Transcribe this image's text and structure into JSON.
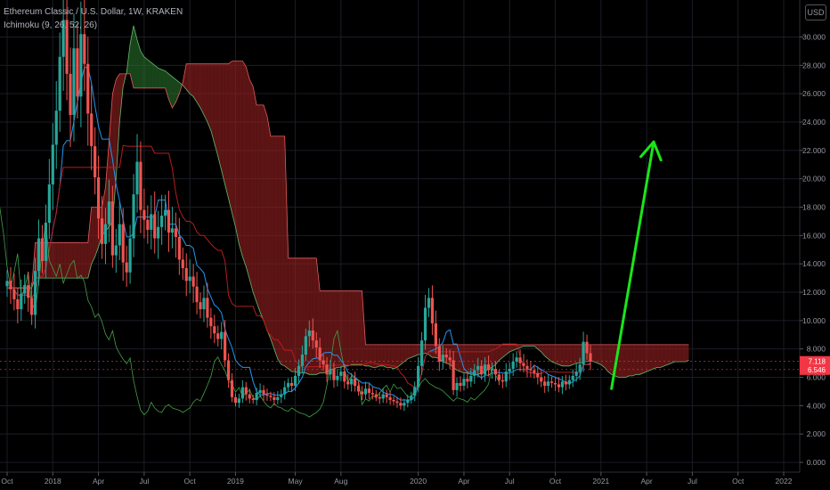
{
  "legend": {
    "symbol": "Ethereum Classic / U.S. Dollar, 1W, KRAKEN",
    "indicator": "Ichimoku (9, 26, 52, 26)"
  },
  "currency_button": "USD",
  "chart_data": {
    "type": "candlestick",
    "ylim": [
      0,
      31.5
    ],
    "y_ticks": [
      "0.000",
      "2.000",
      "4.000",
      "6.000",
      "8.000",
      "10.000",
      "12.000",
      "14.000",
      "16.000",
      "18.000",
      "20.000",
      "22.000",
      "24.000",
      "26.000",
      "28.000",
      "30.000"
    ],
    "x_labels": [
      {
        "label": "Oct",
        "week": 0
      },
      {
        "label": "2018",
        "week": 13
      },
      {
        "label": "Apr",
        "week": 26
      },
      {
        "label": "Jul",
        "week": 39
      },
      {
        "label": "Oct",
        "week": 52
      },
      {
        "label": "2019",
        "week": 65
      },
      {
        "label": "May",
        "week": 82
      },
      {
        "label": "Aug",
        "week": 95
      },
      {
        "label": "2020",
        "week": 117
      },
      {
        "label": "Apr",
        "week": 130
      },
      {
        "label": "Jul",
        "week": 143
      },
      {
        "label": "Oct",
        "week": 156
      },
      {
        "label": "2021",
        "week": 169
      },
      {
        "label": "Apr",
        "week": 182
      },
      {
        "label": "Jul",
        "week": 195
      },
      {
        "label": "Oct",
        "week": 208
      },
      {
        "label": "2022",
        "week": 221
      }
    ],
    "weeks_total": 230,
    "current_price": {
      "label": "7.118",
      "value": 7.118,
      "color": "#f23645"
    },
    "kijun_badge": {
      "label": "6.546",
      "value": 6.546,
      "color": "#f23645"
    },
    "close": [
      12.8,
      12.2,
      11.5,
      10.8,
      11.9,
      12.5,
      11.6,
      10.4,
      13.5,
      15.8,
      14.2,
      16.9,
      19.6,
      22.4,
      24.8,
      28.6,
      31.2,
      27.4,
      24.5,
      29.2,
      25.8,
      30.2,
      28.1,
      24.6,
      22.3,
      20.1,
      17.2,
      15.4,
      16.8,
      18.4,
      14.6,
      15.3,
      16.8,
      14.1,
      13.4,
      15.8,
      18.9,
      21.2,
      17.8,
      17.1,
      16.4,
      17.5,
      15.8,
      16.6,
      17.4,
      17.8,
      16.2,
      16.5,
      15.9,
      14.3,
      13.7,
      12.8,
      13.1,
      12.4,
      11.3,
      10.8,
      11.6,
      10.2,
      9.6,
      9.1,
      8.7,
      9.2,
      7.2,
      5.8,
      4.6,
      4.2,
      4.5,
      5.3,
      4.8,
      4.5,
      4.4,
      4.9,
      5.1,
      4.8,
      4.7,
      4.6,
      4.4,
      4.6,
      4.8,
      5.3,
      5.6,
      5.4,
      6.1,
      6.8,
      7.6,
      8.9,
      9.3,
      8.6,
      8.1,
      7.2,
      6.9,
      6.2,
      6.6,
      5.8,
      6.1,
      6.4,
      5.7,
      5.5,
      5.9,
      5.4,
      5.0,
      4.8,
      5.2,
      4.9,
      4.8,
      4.6,
      4.5,
      4.8,
      4.6,
      4.4,
      4.3,
      4.2,
      4.0,
      4.2,
      4.4,
      4.7,
      5.3,
      6.8,
      8.6,
      10.9,
      11.6,
      9.8,
      8.2,
      7.1,
      7.6,
      7.4,
      7.2,
      5.1,
      5.6,
      5.4,
      5.9,
      5.7,
      6.1,
      6.5,
      6.8,
      6.2,
      6.9,
      6.5,
      6.6,
      6.2,
      5.8,
      5.7,
      6.4,
      6.6,
      7.1,
      7.4,
      7.0,
      6.8,
      6.6,
      6.5,
      6.3,
      6.0,
      5.7,
      5.4,
      5.7,
      5.6,
      5.5,
      5.3,
      5.7,
      5.5,
      5.8,
      6.1,
      6.4,
      6.9,
      8.5,
      7.7,
      7.1
    ],
    "ichimoku": {
      "span_a": [
        12.3,
        12.3,
        12.3,
        12.3,
        12.3,
        12.3,
        12.3,
        12.3,
        13.0,
        13.0,
        13.0,
        13.0,
        13.0,
        13.0,
        13.0,
        13.0,
        13.0,
        13.0,
        13.0,
        13.0,
        13.0,
        13.0,
        13.0,
        13.0,
        14.0,
        14.5,
        15.2,
        16.0,
        16.3,
        16.6,
        17.0,
        20.0,
        24.0,
        26.5,
        27.5,
        29.5,
        30.8,
        29.8,
        29.0,
        28.6,
        28.4,
        28.2,
        28.0,
        27.8,
        27.7,
        27.6,
        27.4,
        27.2,
        27.0,
        26.8,
        26.6,
        26.3,
        26.0,
        25.8,
        25.4,
        25.0,
        24.5,
        24.0,
        23.4,
        22.5,
        21.6,
        20.6,
        19.6,
        18.6,
        17.6,
        16.6,
        15.4,
        14.5,
        13.8,
        12.9,
        12.0,
        11.3,
        10.6,
        10.0,
        9.3,
        8.7,
        8.0,
        7.3,
        6.9,
        6.8,
        6.6,
        6.4,
        6.4,
        6.3,
        6.3,
        6.3,
        6.2,
        6.2,
        6.2,
        6.3,
        6.3,
        6.4,
        6.5,
        6.6,
        6.7,
        6.7,
        6.8,
        6.8,
        6.9,
        6.9,
        6.9,
        6.9,
        6.8,
        6.8,
        6.7,
        6.7,
        6.8,
        6.8,
        6.7,
        6.7,
        6.6,
        6.7,
        6.9,
        7.1,
        7.3,
        7.4,
        7.5,
        7.6,
        7.6,
        7.7,
        7.6,
        7.4,
        7.4,
        7.3,
        7.1,
        7.0,
        6.9,
        6.7,
        6.5,
        6.4,
        6.3,
        6.3,
        6.2,
        6.2,
        6.2,
        6.3,
        6.4,
        6.6,
        6.7,
        6.9,
        7.2,
        7.4,
        7.6,
        7.8,
        7.9,
        8.0,
        8.1,
        8.2,
        8.2,
        8.2,
        8.2,
        8.0,
        7.8,
        7.5,
        7.3,
        7.1,
        7.0,
        6.9,
        6.8,
        6.8,
        6.8,
        6.9,
        7.0,
        7.0,
        7.1,
        7.1,
        7.2,
        7.1,
        7.0,
        6.9,
        6.7,
        6.4,
        6.2,
        6.1,
        6.0,
        6.0,
        6.0,
        6.1,
        6.1,
        6.2,
        6.2,
        6.3,
        6.4,
        6.5,
        6.6,
        6.7,
        6.7,
        6.8,
        6.9,
        7.0,
        7.1,
        7.1,
        7.1,
        7.1,
        7.2
      ],
      "span_b": [
        12.3,
        12.3,
        12.3,
        12.3,
        12.3,
        12.3,
        12.3,
        12.3,
        15.5,
        15.5,
        15.5,
        15.5,
        15.5,
        15.5,
        15.5,
        15.5,
        15.5,
        15.5,
        15.5,
        15.5,
        15.5,
        15.5,
        15.5,
        15.5,
        18.0,
        18.0,
        18.0,
        18.0,
        19.4,
        22.6,
        26.0,
        27.0,
        27.4,
        27.4,
        27.4,
        27.4,
        26.4,
        26.4,
        26.4,
        26.4,
        26.4,
        26.4,
        26.4,
        26.4,
        26.4,
        26.4,
        25.6,
        25.0,
        25.4,
        26.0,
        26.8,
        28.1,
        28.1,
        28.1,
        28.1,
        28.1,
        28.1,
        28.1,
        28.1,
        28.1,
        28.1,
        28.1,
        28.1,
        28.1,
        28.3,
        28.3,
        28.3,
        28.3,
        27.9,
        27.0,
        26.5,
        25.2,
        25.2,
        25.2,
        24.4,
        23.0,
        23.0,
        23.0,
        23.0,
        23.0,
        14.4,
        14.4,
        14.4,
        14.4,
        14.4,
        14.4,
        14.4,
        14.4,
        14.4,
        12.1,
        12.1,
        12.1,
        12.1,
        12.1,
        12.1,
        12.1,
        12.1,
        12.1,
        12.1,
        12.1,
        12.1,
        12.1,
        8.3,
        8.3,
        8.3,
        8.3,
        8.3,
        8.3,
        8.3,
        8.3,
        8.3,
        8.3,
        8.3,
        8.3,
        8.3,
        8.3,
        8.3,
        8.3,
        8.3,
        8.3,
        8.3,
        8.3,
        8.3,
        8.3,
        8.3,
        8.3,
        8.3,
        8.3,
        8.3,
        8.3,
        8.3,
        8.3,
        8.3,
        8.3,
        8.3,
        8.3,
        8.3,
        8.3,
        8.3,
        8.3,
        8.3,
        8.3,
        8.3,
        8.3,
        8.3,
        8.3,
        8.3,
        8.3,
        8.3,
        8.3,
        8.3,
        8.3,
        8.3,
        8.3,
        8.3,
        8.3,
        8.3,
        8.3,
        8.3,
        8.3,
        8.3,
        8.3,
        8.3,
        8.3,
        8.3,
        8.3,
        8.3,
        8.3,
        8.3,
        8.3,
        8.3,
        8.3,
        8.3,
        8.3,
        8.3,
        8.3,
        8.3,
        8.3,
        8.3,
        8.3,
        8.3,
        8.3,
        8.3,
        8.3,
        8.3,
        8.3,
        8.3,
        8.3,
        8.3,
        8.3,
        8.3,
        8.3,
        8.3,
        8.3,
        8.3
      ]
    },
    "arrow_annotation": {
      "from": {
        "week": 172,
        "price": 5.2
      },
      "to": {
        "week": 184,
        "price": 22.6
      },
      "color": "#19e619"
    }
  }
}
